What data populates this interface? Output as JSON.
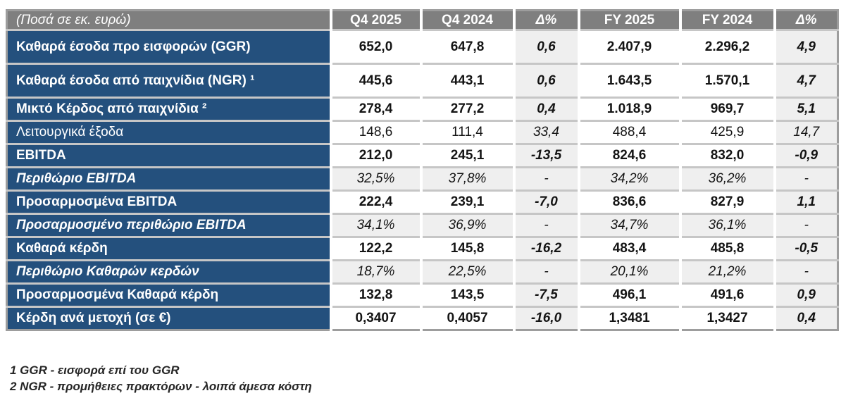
{
  "table": {
    "unit_label": "(Ποσά σε εκ. ευρώ)",
    "columns": [
      "Q4 2025",
      "Q4 2024",
      "Δ%",
      "FY 2025",
      "FY 2024",
      "Δ%"
    ],
    "rows": [
      {
        "label": "Καθαρά έσοδα προ εισφορών (GGR)",
        "values": [
          "652,0",
          "647,8",
          "0,6",
          "2.407,9",
          "2.296,2",
          "4,9"
        ]
      },
      {
        "label": "Καθαρά έσοδα από παιχνίδια (NGR) ¹",
        "values": [
          "445,6",
          "443,1",
          "0,6",
          "1.643,5",
          "1.570,1",
          "4,7"
        ]
      },
      {
        "label": "Μικτό Κέρδος από παιχνίδια ²",
        "values": [
          "278,4",
          "277,2",
          "0,4",
          "1.018,9",
          "969,7",
          "5,1"
        ]
      },
      {
        "label": "Λειτουργικά έξοδα",
        "values": [
          "148,6",
          "111,4",
          "33,4",
          "488,4",
          "425,9",
          "14,7"
        ]
      },
      {
        "label": "EBITDA",
        "values": [
          "212,0",
          "245,1",
          "-13,5",
          "824,6",
          "832,0",
          "-0,9"
        ]
      },
      {
        "label": "Περιθώριο EBITDA",
        "values": [
          "32,5%",
          "37,8%",
          "-",
          "34,2%",
          "36,2%",
          "-"
        ]
      },
      {
        "label": "Προσαρμοσμένα EBITDA",
        "values": [
          "222,4",
          "239,1",
          "-7,0",
          "836,6",
          "827,9",
          "1,1"
        ]
      },
      {
        "label": "Προσαρμοσμένο περιθώριο EBITDA",
        "values": [
          "34,1%",
          "36,9%",
          "-",
          "34,7%",
          "36,1%",
          "-"
        ]
      },
      {
        "label": "Καθαρά κέρδη",
        "values": [
          "122,2",
          "145,8",
          "-16,2",
          "483,4",
          "485,8",
          "-0,5"
        ]
      },
      {
        "label": "Περιθώριο Καθαρών κερδών",
        "values": [
          "18,7%",
          "22,5%",
          "-",
          "20,1%",
          "21,2%",
          "-"
        ]
      },
      {
        "label": "Προσαρμοσμένα Καθαρά κέρδη",
        "values": [
          "132,8",
          "143,5",
          "-7,5",
          "496,1",
          "491,6",
          "0,9"
        ]
      },
      {
        "label": "Κέρδη ανά μετοχή (σε €)",
        "values": [
          "0,3407",
          "0,4057",
          "-16,0",
          "1,3481",
          "1,3427",
          "0,4"
        ]
      }
    ]
  },
  "footnotes": [
    "1 GGR - εισφορά επί του GGR",
    "2 NGR - προμήθειες πρακτόρων - λοιπά άμεσα κόστη"
  ],
  "colors": {
    "label_bg": "#24507d",
    "header_bg": "#7f7f7f",
    "delta_bg": "#efefef",
    "grid_gray": "#c6c6c6"
  }
}
